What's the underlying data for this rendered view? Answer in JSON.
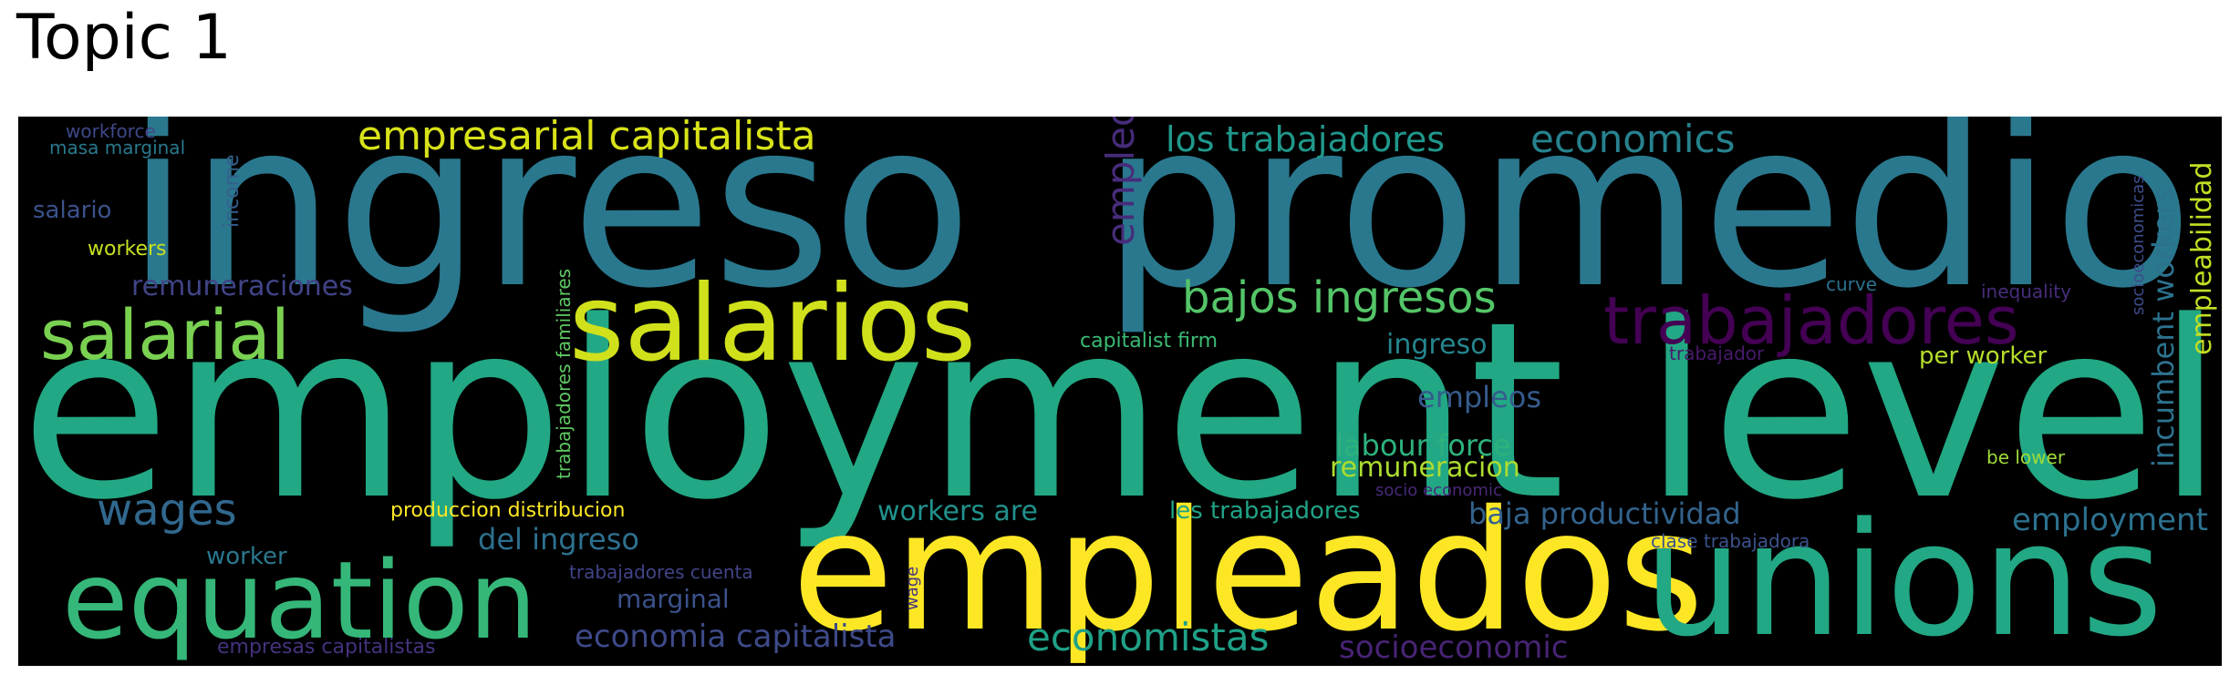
{
  "title": "Topic 1",
  "chart_data": {
    "type": "wordcloud",
    "title": "Topic 1",
    "words": [
      {
        "text": "employment level",
        "color": "#22a884"
      },
      {
        "text": "ingreso",
        "color": "#2a788e"
      },
      {
        "text": "promedio",
        "color": "#2a788e"
      },
      {
        "text": "empleados",
        "color": "#fde725"
      },
      {
        "text": "unions",
        "color": "#22a884"
      },
      {
        "text": "salarios",
        "color": "#d0e11c"
      },
      {
        "text": "equation",
        "color": "#35b779"
      },
      {
        "text": "trabajadores",
        "color": "#440154"
      },
      {
        "text": "salarial",
        "color": "#7ad151"
      },
      {
        "text": "empresarial capitalista",
        "color": "#d8e219"
      },
      {
        "text": "bajos ingresos",
        "color": "#54c568"
      },
      {
        "text": "los trabajadores",
        "color": "#1f988b"
      },
      {
        "text": "economics",
        "color": "#26828e"
      },
      {
        "text": "empleo",
        "color": "#472c7a"
      },
      {
        "text": "wages",
        "color": "#31688e"
      },
      {
        "text": "economistas",
        "color": "#1fa187"
      },
      {
        "text": "economia capitalista",
        "color": "#3e4a89"
      },
      {
        "text": "socioeconomic",
        "color": "#482475"
      },
      {
        "text": "employment",
        "color": "#2c718e"
      },
      {
        "text": "incumbent workers",
        "color": "#2c728e"
      },
      {
        "text": "empleabilidad",
        "color": "#c2df23"
      },
      {
        "text": "baja productividad",
        "color": "#33638d"
      },
      {
        "text": "del ingreso",
        "color": "#2d708e"
      },
      {
        "text": "labour force",
        "color": "#2db27d"
      },
      {
        "text": "remuneracion",
        "color": "#addc30"
      },
      {
        "text": "empleos",
        "color": "#365c8d"
      },
      {
        "text": "ingreso",
        "color": "#25858e"
      },
      {
        "text": "remuneraciones",
        "color": "#414487"
      },
      {
        "text": "workers are",
        "color": "#21918c"
      },
      {
        "text": "les trabajadores",
        "color": "#20a386"
      },
      {
        "text": "per worker",
        "color": "#b5de2b"
      },
      {
        "text": "capitalist firm",
        "color": "#3bbb75"
      },
      {
        "text": "marginal",
        "color": "#3b528b"
      },
      {
        "text": "worker",
        "color": "#2a788e"
      },
      {
        "text": "produccion distribucion",
        "color": "#fde725"
      },
      {
        "text": "trabajadores familiares",
        "color": "#5ec962"
      },
      {
        "text": "income",
        "color": "#355f8d"
      },
      {
        "text": "salario",
        "color": "#3b528b"
      },
      {
        "text": "workers",
        "color": "#c8e020"
      },
      {
        "text": "masa marginal",
        "color": "#2a788e"
      },
      {
        "text": "workforce",
        "color": "#3e4989"
      },
      {
        "text": "trabajadores cuenta",
        "color": "#414487"
      },
      {
        "text": "empresas capitalistas",
        "color": "#46327e"
      },
      {
        "text": "wage",
        "color": "#453781"
      },
      {
        "text": "socio economic",
        "color": "#482979"
      },
      {
        "text": "clase trabajadora",
        "color": "#3b528b"
      },
      {
        "text": "be lower",
        "color": "#a0da39"
      },
      {
        "text": "trabajador",
        "color": "#481a6c"
      },
      {
        "text": "curve",
        "color": "#2c728e"
      },
      {
        "text": "inequality",
        "color": "#472d7b"
      },
      {
        "text": "socioeconomicas",
        "color": "#3e4c8a"
      }
    ]
  }
}
